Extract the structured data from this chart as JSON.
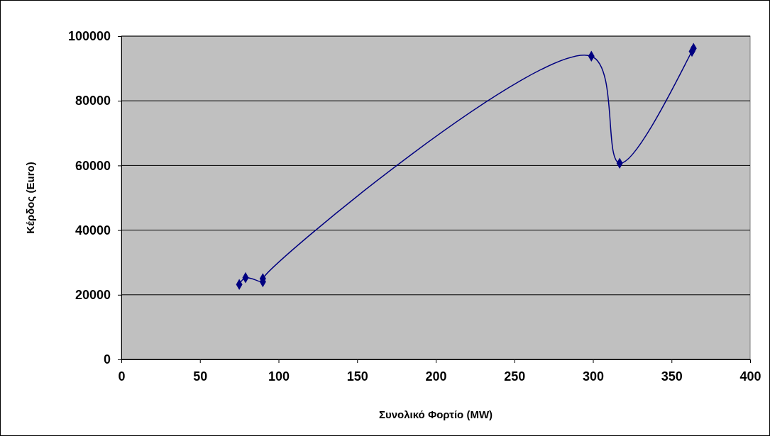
{
  "chart_data": {
    "type": "line",
    "xlabel": "Συνολικό Φορτίο (MW)",
    "ylabel": "Κέρδος (Euro)",
    "series": [
      {
        "color": "#000080",
        "x": [
          75,
          79,
          90,
          90,
          299,
          317,
          363,
          364
        ],
        "values": [
          23200,
          25300,
          24000,
          25000,
          93800,
          60700,
          95300,
          96200
        ]
      }
    ],
    "xlim": [
      0,
      400
    ],
    "xticks": [
      0,
      50,
      100,
      150,
      200,
      250,
      300,
      350,
      400
    ],
    "ylim": [
      0,
      100000
    ],
    "yticks": [
      0,
      20000,
      40000,
      60000,
      80000,
      100000
    ],
    "grid": "y",
    "marker": "diamond",
    "line_style": "solid"
  }
}
